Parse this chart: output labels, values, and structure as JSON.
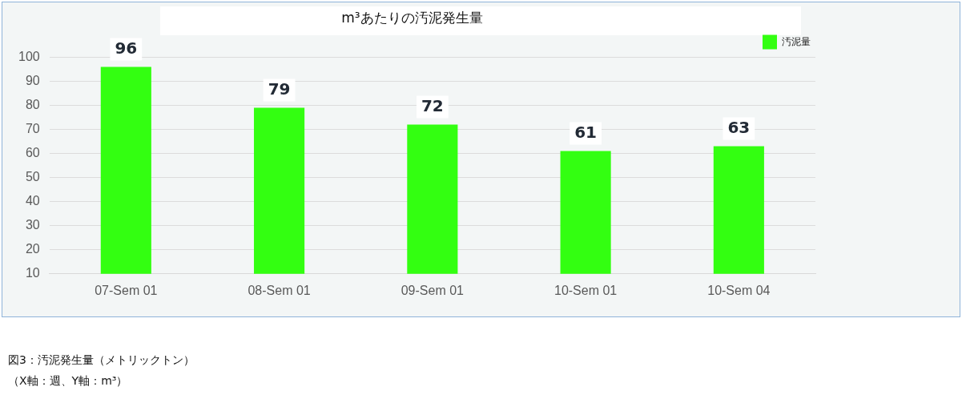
{
  "chart_data": {
    "type": "bar",
    "title": "m³あたりの汚泥発生量",
    "categories": [
      "07-Sem 01",
      "08-Sem 01",
      "09-Sem 01",
      "10-Sem 01",
      "10-Sem 04"
    ],
    "series": [
      {
        "name": "汚泥量",
        "color": "#33ff11",
        "values": [
          96,
          79,
          72,
          61,
          63
        ]
      }
    ],
    "ylim": [
      10,
      100
    ],
    "yticks": [
      10,
      20,
      30,
      40,
      50,
      60,
      70,
      80,
      90,
      100
    ],
    "grid": "y",
    "legend": "top right",
    "data_labels": true,
    "annotations": [
      "図3：汚泥発生量（メトリックトン）",
      "（X軸：週、Y軸：m³）"
    ]
  }
}
